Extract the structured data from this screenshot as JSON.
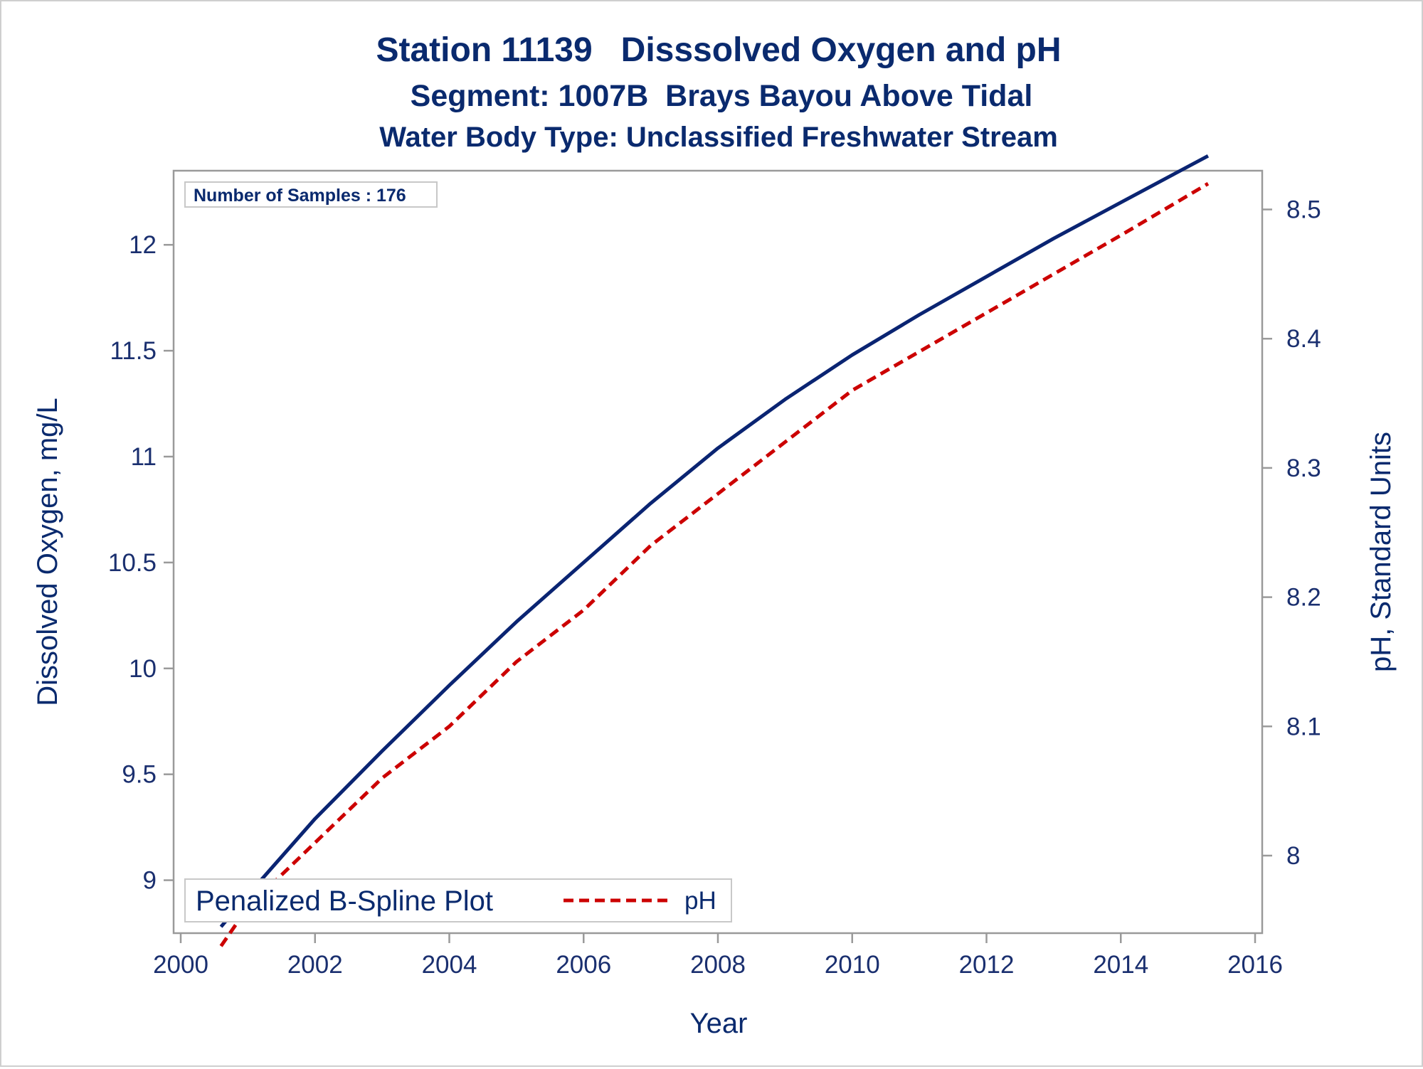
{
  "titles": {
    "line1": "Station 11139   Disssolved Oxygen and pH",
    "line2": "Segment: 1007B  Brays Bayou Above Tidal",
    "line3": "Water Body Type: Unclassified Freshwater Stream"
  },
  "inset": {
    "text": "Number of Samples : 176"
  },
  "legend": {
    "title": "Penalized B-Spline Plot",
    "entry": "pH"
  },
  "colors": {
    "do_line": "#0a2472",
    "ph_line": "#cc0000",
    "text": "#0a2a6e",
    "frame": "#9a9a9a"
  },
  "chart_data": {
    "type": "line",
    "xlabel": "Year",
    "ylabel": "Dissolved Oxygen, mg/L",
    "y2label": "pH, Standard Units",
    "xlim": [
      2000,
      2016
    ],
    "ylim": [
      8.75,
      12.35
    ],
    "y2lim": [
      7.94,
      8.53
    ],
    "x_ticks": [
      2000,
      2002,
      2004,
      2006,
      2008,
      2010,
      2012,
      2014,
      2016
    ],
    "y_ticks": [
      9,
      9.5,
      10,
      10.5,
      11,
      11.5,
      12
    ],
    "y2_ticks": [
      8,
      8.1,
      8.2,
      8.3,
      8.4,
      8.5
    ],
    "grid": false,
    "series": [
      {
        "axis": "left",
        "style": "solid",
        "x": [
          2000.6,
          2001.0,
          2002.0,
          2003.0,
          2004.0,
          2005.0,
          2006.0,
          2007.0,
          2008.0,
          2009.0,
          2010.0,
          2011.0,
          2012.0,
          2013.0,
          2014.0,
          2015.3
        ],
        "values": [
          8.78,
          8.93,
          9.29,
          9.61,
          9.92,
          10.22,
          10.5,
          10.78,
          11.04,
          11.27,
          11.48,
          11.67,
          11.85,
          12.03,
          12.2,
          12.42
        ]
      },
      {
        "name": "pH",
        "axis": "right",
        "style": "dashed",
        "x": [
          2000.6,
          2001.0,
          2002.0,
          2003.0,
          2004.0,
          2005.0,
          2006.0,
          2007.0,
          2008.0,
          2009.0,
          2010.0,
          2011.0,
          2012.0,
          2013.0,
          2014.0,
          2015.3
        ],
        "values": [
          7.93,
          7.96,
          8.01,
          8.06,
          8.1,
          8.15,
          8.19,
          8.24,
          8.28,
          8.32,
          8.36,
          8.39,
          8.42,
          8.45,
          8.48,
          8.52
        ]
      }
    ]
  }
}
